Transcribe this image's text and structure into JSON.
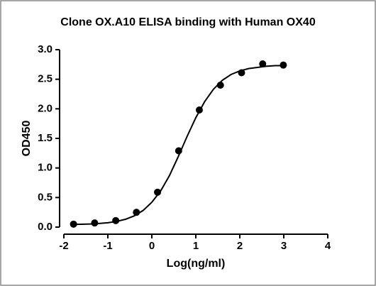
{
  "chart_data": {
    "type": "scatter",
    "title": "Clone OX.A10 ELISA binding with Human OX40",
    "xlabel": "Log(ng/ml)",
    "ylabel": "OD450",
    "xlim": [
      -2,
      4
    ],
    "xticks": [
      -2,
      -1,
      0,
      1,
      2,
      3,
      4
    ],
    "ylim": [
      0,
      3
    ],
    "yticks": [
      {
        "value": 0,
        "label": "0.0"
      },
      {
        "value": 0.5,
        "label": "0.5"
      },
      {
        "value": 1,
        "label": "1.0"
      },
      {
        "value": 1.5,
        "label": "1.5"
      },
      {
        "value": 2,
        "label": "2.0"
      },
      {
        "value": 2.5,
        "label": "2.5"
      },
      {
        "value": 3,
        "label": "3.0"
      }
    ],
    "series": [
      {
        "type": "scatter",
        "color": "#000000",
        "x": [
          -1.78,
          -1.3,
          -0.82,
          -0.35,
          0.13,
          0.61,
          1.08,
          1.56,
          2.04,
          2.52,
          2.99
        ],
        "values": [
          0.05,
          0.07,
          0.11,
          0.25,
          0.59,
          1.29,
          1.98,
          2.4,
          2.61,
          2.76,
          2.74
        ]
      },
      {
        "type": "line",
        "color": "#000000",
        "x": [
          -1.8,
          -1.6,
          -1.4,
          -1.2,
          -1.0,
          -0.8,
          -0.6,
          -0.4,
          -0.2,
          0,
          0.2,
          0.4,
          0.6,
          0.8,
          1.0,
          1.2,
          1.4,
          1.6,
          1.8,
          2.0,
          2.2,
          2.4,
          2.6,
          2.8,
          3.0
        ],
        "values": [
          0.045,
          0.048,
          0.052,
          0.061,
          0.074,
          0.096,
          0.132,
          0.19,
          0.28,
          0.42,
          0.61,
          0.87,
          1.19,
          1.53,
          1.85,
          2.12,
          2.33,
          2.48,
          2.58,
          2.64,
          2.68,
          2.7,
          2.72,
          2.73,
          2.73
        ]
      }
    ]
  }
}
